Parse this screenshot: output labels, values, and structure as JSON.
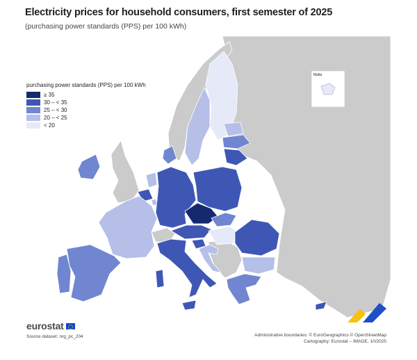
{
  "title": "Electricity prices for household consumers, first semester of 2025",
  "subtitle": "(purchasing power standards (PPS) per 100 kWh)",
  "legend": {
    "title": "purchasing power standards (PPS) per 100 kWh",
    "classes": [
      {
        "label": "≥ 35",
        "color": "#152a6e"
      },
      {
        "label": "30 – < 35",
        "color": "#3f57b4"
      },
      {
        "label": "25 – < 30",
        "color": "#7086d0"
      },
      {
        "label": "20 – < 25",
        "color": "#b5bfe8"
      },
      {
        "label": "< 20",
        "color": "#e6e9f7"
      }
    ]
  },
  "colors": {
    "sea": "#ffffff",
    "non_eu_land": "#cbcbcb",
    "no_data": "#d9d9d9",
    "border": "#ffffff"
  },
  "inset": {
    "label": "Malta"
  },
  "countries": [
    {
      "name": "Czechia",
      "class": "≥ 35"
    },
    {
      "name": "Germany",
      "class": "30 – < 35"
    },
    {
      "name": "Poland",
      "class": "30 – < 35"
    },
    {
      "name": "Belgium",
      "class": "30 – < 35"
    },
    {
      "name": "Austria",
      "class": "30 – < 35"
    },
    {
      "name": "Italy",
      "class": "30 – < 35"
    },
    {
      "name": "Romania",
      "class": "30 – < 35"
    },
    {
      "name": "Lithuania",
      "class": "30 – < 35"
    },
    {
      "name": "Cyprus",
      "class": "30 – < 35"
    },
    {
      "name": "Slovenia",
      "class": "30 – < 35"
    },
    {
      "name": "Ireland",
      "class": "25 – < 30"
    },
    {
      "name": "Spain",
      "class": "25 – < 30"
    },
    {
      "name": "Portugal",
      "class": "25 – < 30"
    },
    {
      "name": "Denmark",
      "class": "25 – < 30"
    },
    {
      "name": "Latvia",
      "class": "25 – < 30"
    },
    {
      "name": "Greece",
      "class": "25 – < 30"
    },
    {
      "name": "Slovakia",
      "class": "25 – < 30"
    },
    {
      "name": "Bulgaria",
      "class": "20 – < 25"
    },
    {
      "name": "France",
      "class": "20 – < 25"
    },
    {
      "name": "Sweden",
      "class": "20 – < 25"
    },
    {
      "name": "Croatia",
      "class": "20 – < 25"
    },
    {
      "name": "Netherlands",
      "class": "20 – < 25"
    },
    {
      "name": "Luxembourg",
      "class": "20 – < 25"
    },
    {
      "name": "Estonia",
      "class": "20 – < 25"
    },
    {
      "name": "Finland",
      "class": "< 20"
    },
    {
      "name": "Hungary",
      "class": "< 20"
    },
    {
      "name": "Malta",
      "class": "< 20"
    }
  ],
  "brand": "eurostat",
  "source": "Source dataset: nrg_pc_204",
  "credits": {
    "line1": "Administrative boundaries: © EuroGeographics © OpenStreetMap",
    "line2": "Cartography: Eurostat – IMAGE, 10/2025"
  }
}
